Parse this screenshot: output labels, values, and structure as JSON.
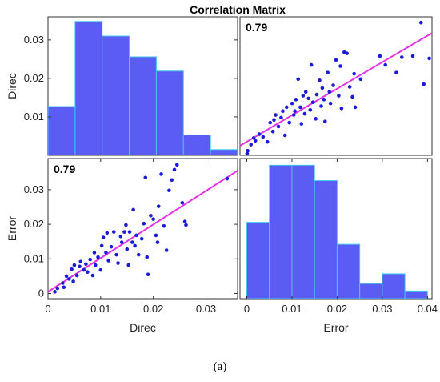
{
  "title": "Correlation Matrix",
  "caption": "(a)",
  "colors": {
    "bar": "#5a5cf4",
    "bar_edge": "#42c8ea",
    "point": "#1c1cd6",
    "fit": "#e632e6",
    "axis": "#333333"
  },
  "chart_data": [
    {
      "type": "bar",
      "panel": "top-left",
      "ylabel": "Direc",
      "xlim": [
        0,
        0.035
      ],
      "ylim": [
        0,
        0.036
      ],
      "bin_edges": [
        0,
        0.005,
        0.01,
        0.015,
        0.02,
        0.025,
        0.03,
        0.035
      ],
      "values": [
        0.0127,
        0.0348,
        0.031,
        0.0256,
        0.0219,
        0.0053,
        0.0015
      ],
      "yticks": [
        "0.01",
        "0.02",
        "0.03"
      ],
      "ytick_values": [
        0.01,
        0.02,
        0.03
      ]
    },
    {
      "type": "scatter",
      "panel": "top-right",
      "annotation": "0.79",
      "xlim": [
        0,
        0.035
      ],
      "ylim": [
        0,
        0.036
      ],
      "fit_line": {
        "x": [
          0,
          0.035
        ],
        "y": [
          0.0025,
          0.0318
        ]
      },
      "points": [
        [
          0.0013,
          0.0005
        ],
        [
          0.0014,
          0.0012
        ],
        [
          0.002,
          0.0028
        ],
        [
          0.0025,
          0.0045
        ],
        [
          0.0028,
          0.0038
        ],
        [
          0.0035,
          0.0055
        ],
        [
          0.0042,
          0.0048
        ],
        [
          0.005,
          0.0035
        ],
        [
          0.0055,
          0.0085
        ],
        [
          0.006,
          0.0062
        ],
        [
          0.0062,
          0.0092
        ],
        [
          0.0065,
          0.0105
        ],
        [
          0.007,
          0.0075
        ],
        [
          0.0075,
          0.0098
        ],
        [
          0.0078,
          0.0115
        ],
        [
          0.0082,
          0.0052
        ],
        [
          0.0085,
          0.0125
        ],
        [
          0.009,
          0.0085
        ],
        [
          0.0095,
          0.0135
        ],
        [
          0.0098,
          0.0105
        ],
        [
          0.01,
          0.0115
        ],
        [
          0.0102,
          0.0145
        ],
        [
          0.0106,
          0.0198
        ],
        [
          0.011,
          0.0125
        ],
        [
          0.0112,
          0.0082
        ],
        [
          0.0115,
          0.0155
        ],
        [
          0.0118,
          0.0108
        ],
        [
          0.012,
          0.0165
        ],
        [
          0.0125,
          0.0148
        ],
        [
          0.0128,
          0.0118
        ],
        [
          0.013,
          0.0235
        ],
        [
          0.0133,
          0.0138
        ],
        [
          0.0138,
          0.0095
        ],
        [
          0.014,
          0.0158
        ],
        [
          0.0145,
          0.0195
        ],
        [
          0.0148,
          0.0128
        ],
        [
          0.015,
          0.0175
        ],
        [
          0.0153,
          0.0145
        ],
        [
          0.0155,
          0.0088
        ],
        [
          0.016,
          0.0215
        ],
        [
          0.0163,
          0.0165
        ],
        [
          0.0165,
          0.0135
        ],
        [
          0.017,
          0.0182
        ],
        [
          0.0175,
          0.0248
        ],
        [
          0.018,
          0.0155
        ],
        [
          0.0183,
          0.0232
        ],
        [
          0.0185,
          0.0122
        ],
        [
          0.019,
          0.0268
        ],
        [
          0.0195,
          0.0265
        ],
        [
          0.02,
          0.0178
        ],
        [
          0.0205,
          0.0152
        ],
        [
          0.0208,
          0.0212
        ],
        [
          0.021,
          0.0125
        ],
        [
          0.022,
          0.0198
        ],
        [
          0.0255,
          0.0258
        ],
        [
          0.0265,
          0.0235
        ],
        [
          0.0285,
          0.0215
        ],
        [
          0.0295,
          0.0255
        ],
        [
          0.0315,
          0.0258
        ],
        [
          0.033,
          0.0345
        ],
        [
          0.0335,
          0.0185
        ],
        [
          0.0345,
          0.0252
        ]
      ]
    },
    {
      "type": "scatter",
      "panel": "bottom-left",
      "annotation": "0.79",
      "ylabel": "Error",
      "xlabel": "Direc",
      "xlim": [
        0,
        0.036
      ],
      "ylim": [
        -0.0015,
        0.039
      ],
      "fit_line": {
        "x": [
          0,
          0.036
        ],
        "y": [
          0.0005,
          0.0355
        ]
      },
      "xticks": [
        "0",
        "0.01",
        "0.02",
        "0.03"
      ],
      "xtick_values": [
        0,
        0.01,
        0.02,
        0.03
      ],
      "yticks": [
        "0",
        "0.01",
        "0.02",
        "0.03"
      ],
      "ytick_values": [
        0,
        0.01,
        0.02,
        0.03
      ],
      "points": [
        [
          0.0013,
          0.0005
        ],
        [
          0.0018,
          0.0015
        ],
        [
          0.0028,
          0.003
        ],
        [
          0.003,
          0.0018
        ],
        [
          0.0035,
          0.005
        ],
        [
          0.004,
          0.0042
        ],
        [
          0.0045,
          0.007
        ],
        [
          0.0048,
          0.0035
        ],
        [
          0.005,
          0.0082
        ],
        [
          0.0055,
          0.0052
        ],
        [
          0.006,
          0.0078
        ],
        [
          0.0062,
          0.0092
        ],
        [
          0.0068,
          0.0068
        ],
        [
          0.0072,
          0.0085
        ],
        [
          0.0075,
          0.0062
        ],
        [
          0.008,
          0.0098
        ],
        [
          0.0085,
          0.0052
        ],
        [
          0.0088,
          0.0118
        ],
        [
          0.009,
          0.0082
        ],
        [
          0.0095,
          0.0105
        ],
        [
          0.01,
          0.0068
        ],
        [
          0.0102,
          0.0138
        ],
        [
          0.0105,
          0.0162
        ],
        [
          0.011,
          0.0118
        ],
        [
          0.0112,
          0.0175
        ],
        [
          0.0115,
          0.0095
        ],
        [
          0.012,
          0.0135
        ],
        [
          0.0125,
          0.0178
        ],
        [
          0.013,
          0.0112
        ],
        [
          0.0133,
          0.0088
        ],
        [
          0.0138,
          0.0165
        ],
        [
          0.014,
          0.0148
        ],
        [
          0.0145,
          0.0178
        ],
        [
          0.0148,
          0.0198
        ],
        [
          0.015,
          0.0128
        ],
        [
          0.0153,
          0.0082
        ],
        [
          0.0155,
          0.0178
        ],
        [
          0.016,
          0.0148
        ],
        [
          0.0162,
          0.0242
        ],
        [
          0.0165,
          0.0138
        ],
        [
          0.0168,
          0.0168
        ],
        [
          0.0172,
          0.0112
        ],
        [
          0.0178,
          0.0158
        ],
        [
          0.0182,
          0.0202
        ],
        [
          0.0185,
          0.0335
        ],
        [
          0.0188,
          0.0105
        ],
        [
          0.019,
          0.0055
        ],
        [
          0.0195,
          0.0225
        ],
        [
          0.02,
          0.0215
        ],
        [
          0.0205,
          0.0168
        ],
        [
          0.0208,
          0.0148
        ],
        [
          0.021,
          0.0252
        ],
        [
          0.0215,
          0.0345
        ],
        [
          0.022,
          0.0195
        ],
        [
          0.0225,
          0.0125
        ],
        [
          0.023,
          0.0298
        ],
        [
          0.0235,
          0.0328
        ],
        [
          0.024,
          0.0358
        ],
        [
          0.0245,
          0.0372
        ],
        [
          0.0255,
          0.0262
        ],
        [
          0.026,
          0.0208
        ],
        [
          0.0262,
          0.0198
        ],
        [
          0.034,
          0.0332
        ]
      ]
    },
    {
      "type": "bar",
      "panel": "bottom-right",
      "xlabel": "Error",
      "xlim": [
        -0.0015,
        0.041
      ],
      "ylim": [
        0,
        0.04
      ],
      "bin_edges": [
        0,
        0.005,
        0.01,
        0.015,
        0.02,
        0.025,
        0.03,
        0.035,
        0.04
      ],
      "values": [
        0.0218,
        0.0381,
        0.0381,
        0.0337,
        0.0155,
        0.0043,
        0.0071,
        0.0022
      ],
      "xticks": [
        "0",
        "0.01",
        "0.02",
        "0.03",
        "0.04"
      ],
      "xtick_values": [
        0,
        0.01,
        0.02,
        0.03,
        0.04
      ]
    }
  ]
}
